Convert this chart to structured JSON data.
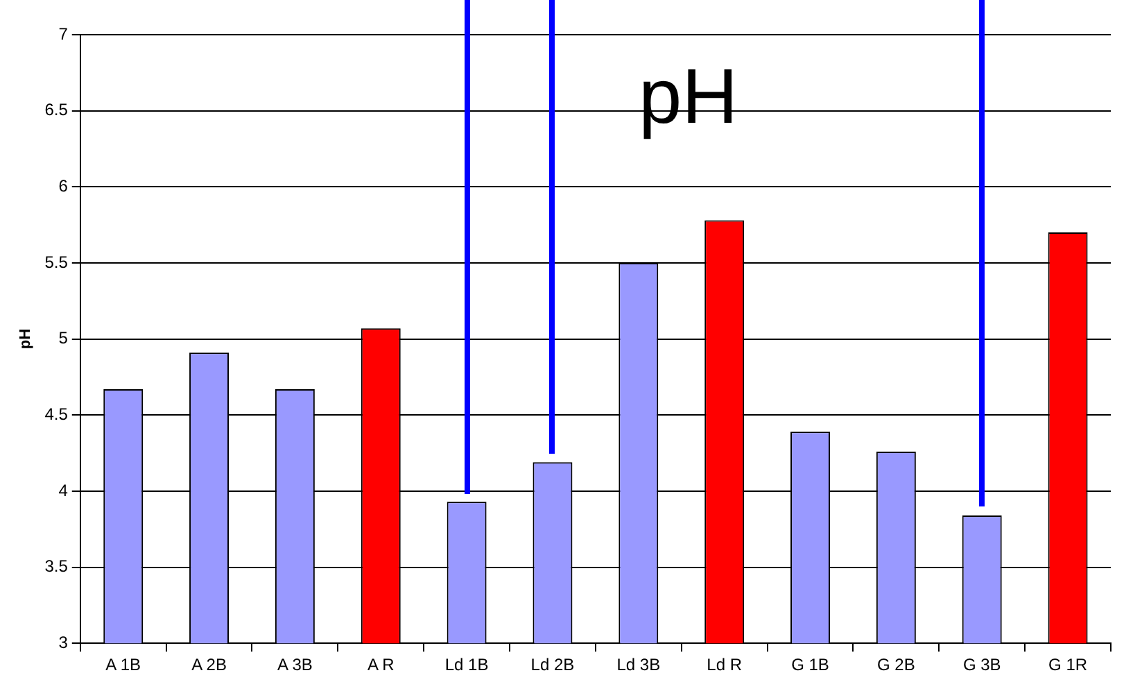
{
  "chart_data": {
    "type": "bar",
    "title": "pH",
    "ylabel": "pH",
    "categories": [
      "A 1B",
      "A 2B",
      "A 3B",
      "A R",
      "Ld 1B",
      "Ld 2B",
      "Ld 3B",
      "Ld R",
      "G 1B",
      "G 2B",
      "G 3B",
      "G 1R"
    ],
    "values": [
      4.67,
      4.91,
      4.67,
      5.07,
      3.93,
      4.19,
      5.5,
      5.78,
      4.39,
      4.26,
      3.84,
      5.7
    ],
    "colors": [
      "#9999ff",
      "#9999ff",
      "#9999ff",
      "#ff0000",
      "#9999ff",
      "#9999ff",
      "#9999ff",
      "#ff0000",
      "#9999ff",
      "#9999ff",
      "#9999ff",
      "#ff0000"
    ],
    "ylim": [
      3,
      7
    ],
    "yticks": [
      3,
      3.5,
      4,
      4.5,
      5,
      5.5,
      6,
      6.5,
      7
    ],
    "grid": "y",
    "legend": false
  }
}
